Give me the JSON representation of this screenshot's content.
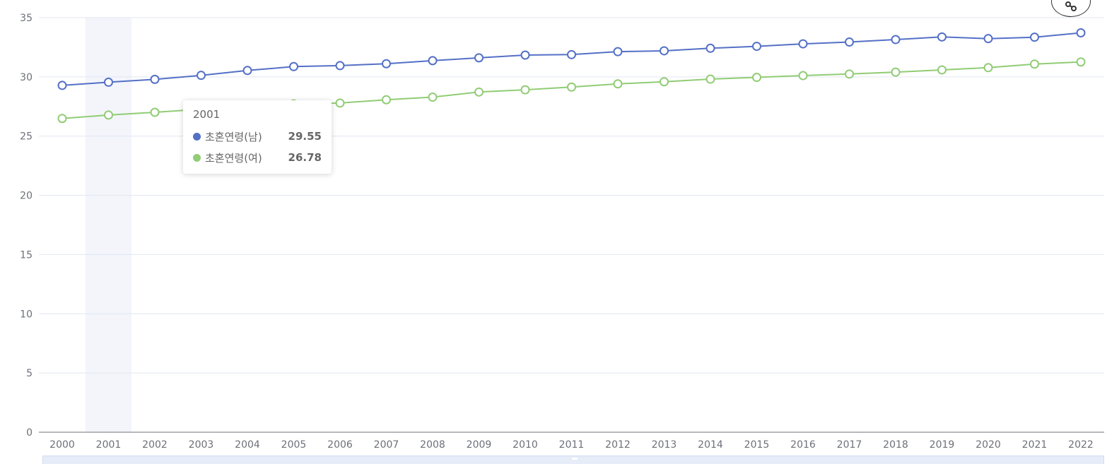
{
  "chart_data": {
    "type": "line",
    "categories": [
      "2000",
      "2001",
      "2002",
      "2003",
      "2004",
      "2005",
      "2006",
      "2007",
      "2008",
      "2009",
      "2010",
      "2011",
      "2012",
      "2013",
      "2014",
      "2015",
      "2016",
      "2017",
      "2018",
      "2019",
      "2020",
      "2021",
      "2022"
    ],
    "series": [
      {
        "name": "초혼연령(남)",
        "color": "#5470c6",
        "values": [
          29.28,
          29.55,
          29.79,
          30.13,
          30.54,
          30.87,
          30.95,
          31.11,
          31.37,
          31.61,
          31.84,
          31.88,
          32.13,
          32.2,
          32.42,
          32.58,
          32.79,
          32.94,
          33.15,
          33.37,
          33.23,
          33.35,
          33.72
        ]
      },
      {
        "name": "초혼연령(여)",
        "color": "#91cc75",
        "values": [
          26.49,
          26.78,
          27.01,
          27.27,
          27.53,
          27.72,
          27.79,
          28.07,
          28.29,
          28.72,
          28.91,
          29.14,
          29.41,
          29.59,
          29.81,
          29.96,
          30.11,
          30.24,
          30.4,
          30.59,
          30.78,
          31.08,
          31.26
        ]
      }
    ],
    "yticks": [
      "0",
      "5",
      "10",
      "15",
      "20",
      "25",
      "30",
      "35"
    ],
    "ylim": [
      0,
      35
    ],
    "grid": true,
    "highlight_index": 1
  },
  "tooltip": {
    "title": "2001",
    "rows": [
      {
        "name": "초혼연령(남)",
        "value": "29.55",
        "color": "#5470c6"
      },
      {
        "name": "초혼연령(여)",
        "value": "26.78",
        "color": "#91cc75"
      }
    ]
  },
  "toolbar": {
    "share_icon": "share-icon"
  }
}
